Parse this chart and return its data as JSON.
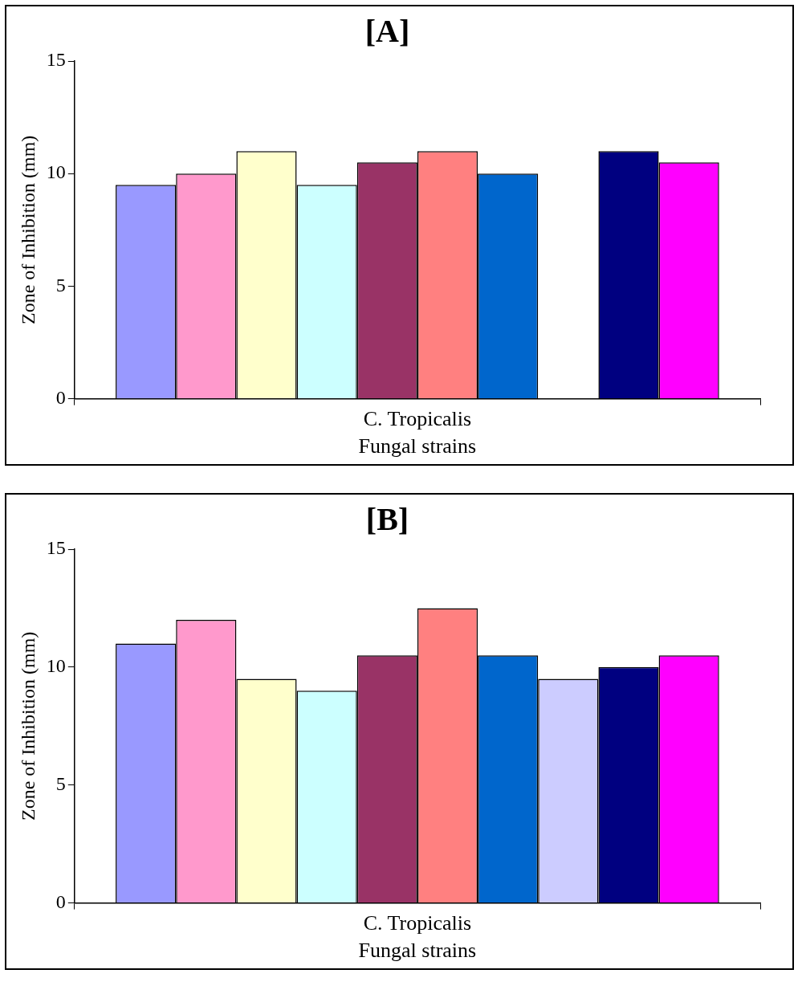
{
  "chart_data": [
    {
      "type": "bar",
      "title": "[A]",
      "xlabel": "Fungal strains",
      "ylabel": "Zone of Inhibition (mm)",
      "categories": [
        "C. Tropicalis"
      ],
      "ylim": [
        0,
        15
      ],
      "yticks": [
        0,
        5,
        10,
        15
      ],
      "grid": false,
      "series": [
        {
          "color": "#9999ff",
          "values": [
            9.5
          ]
        },
        {
          "color": "#ff99cc",
          "values": [
            10
          ]
        },
        {
          "color": "#ffffcc",
          "values": [
            11
          ]
        },
        {
          "color": "#ccffff",
          "values": [
            9.5
          ]
        },
        {
          "color": "#993366",
          "values": [
            10.5
          ]
        },
        {
          "color": "#ff8080",
          "values": [
            11
          ]
        },
        {
          "color": "#0066cc",
          "values": [
            10
          ]
        },
        {
          "color": "#ccccff",
          "values": [
            null
          ]
        },
        {
          "color": "#000080",
          "values": [
            11
          ]
        },
        {
          "color": "#ff00ff",
          "values": [
            10.5
          ]
        }
      ]
    },
    {
      "type": "bar",
      "title": "[B]",
      "xlabel": "Fungal strains",
      "ylabel": "Zone of Inhibition (mm)",
      "categories": [
        "C. Tropicalis"
      ],
      "ylim": [
        0,
        15
      ],
      "yticks": [
        0,
        5,
        10,
        15
      ],
      "grid": false,
      "series": [
        {
          "color": "#9999ff",
          "values": [
            11
          ]
        },
        {
          "color": "#ff99cc",
          "values": [
            12
          ]
        },
        {
          "color": "#ffffcc",
          "values": [
            9.5
          ]
        },
        {
          "color": "#ccffff",
          "values": [
            9
          ]
        },
        {
          "color": "#993366",
          "values": [
            10.5
          ]
        },
        {
          "color": "#ff8080",
          "values": [
            12.5
          ]
        },
        {
          "color": "#0066cc",
          "values": [
            10.5
          ]
        },
        {
          "color": "#ccccff",
          "values": [
            9.5
          ]
        },
        {
          "color": "#000080",
          "values": [
            10
          ]
        },
        {
          "color": "#ff00ff",
          "values": [
            10.5
          ]
        }
      ]
    }
  ]
}
